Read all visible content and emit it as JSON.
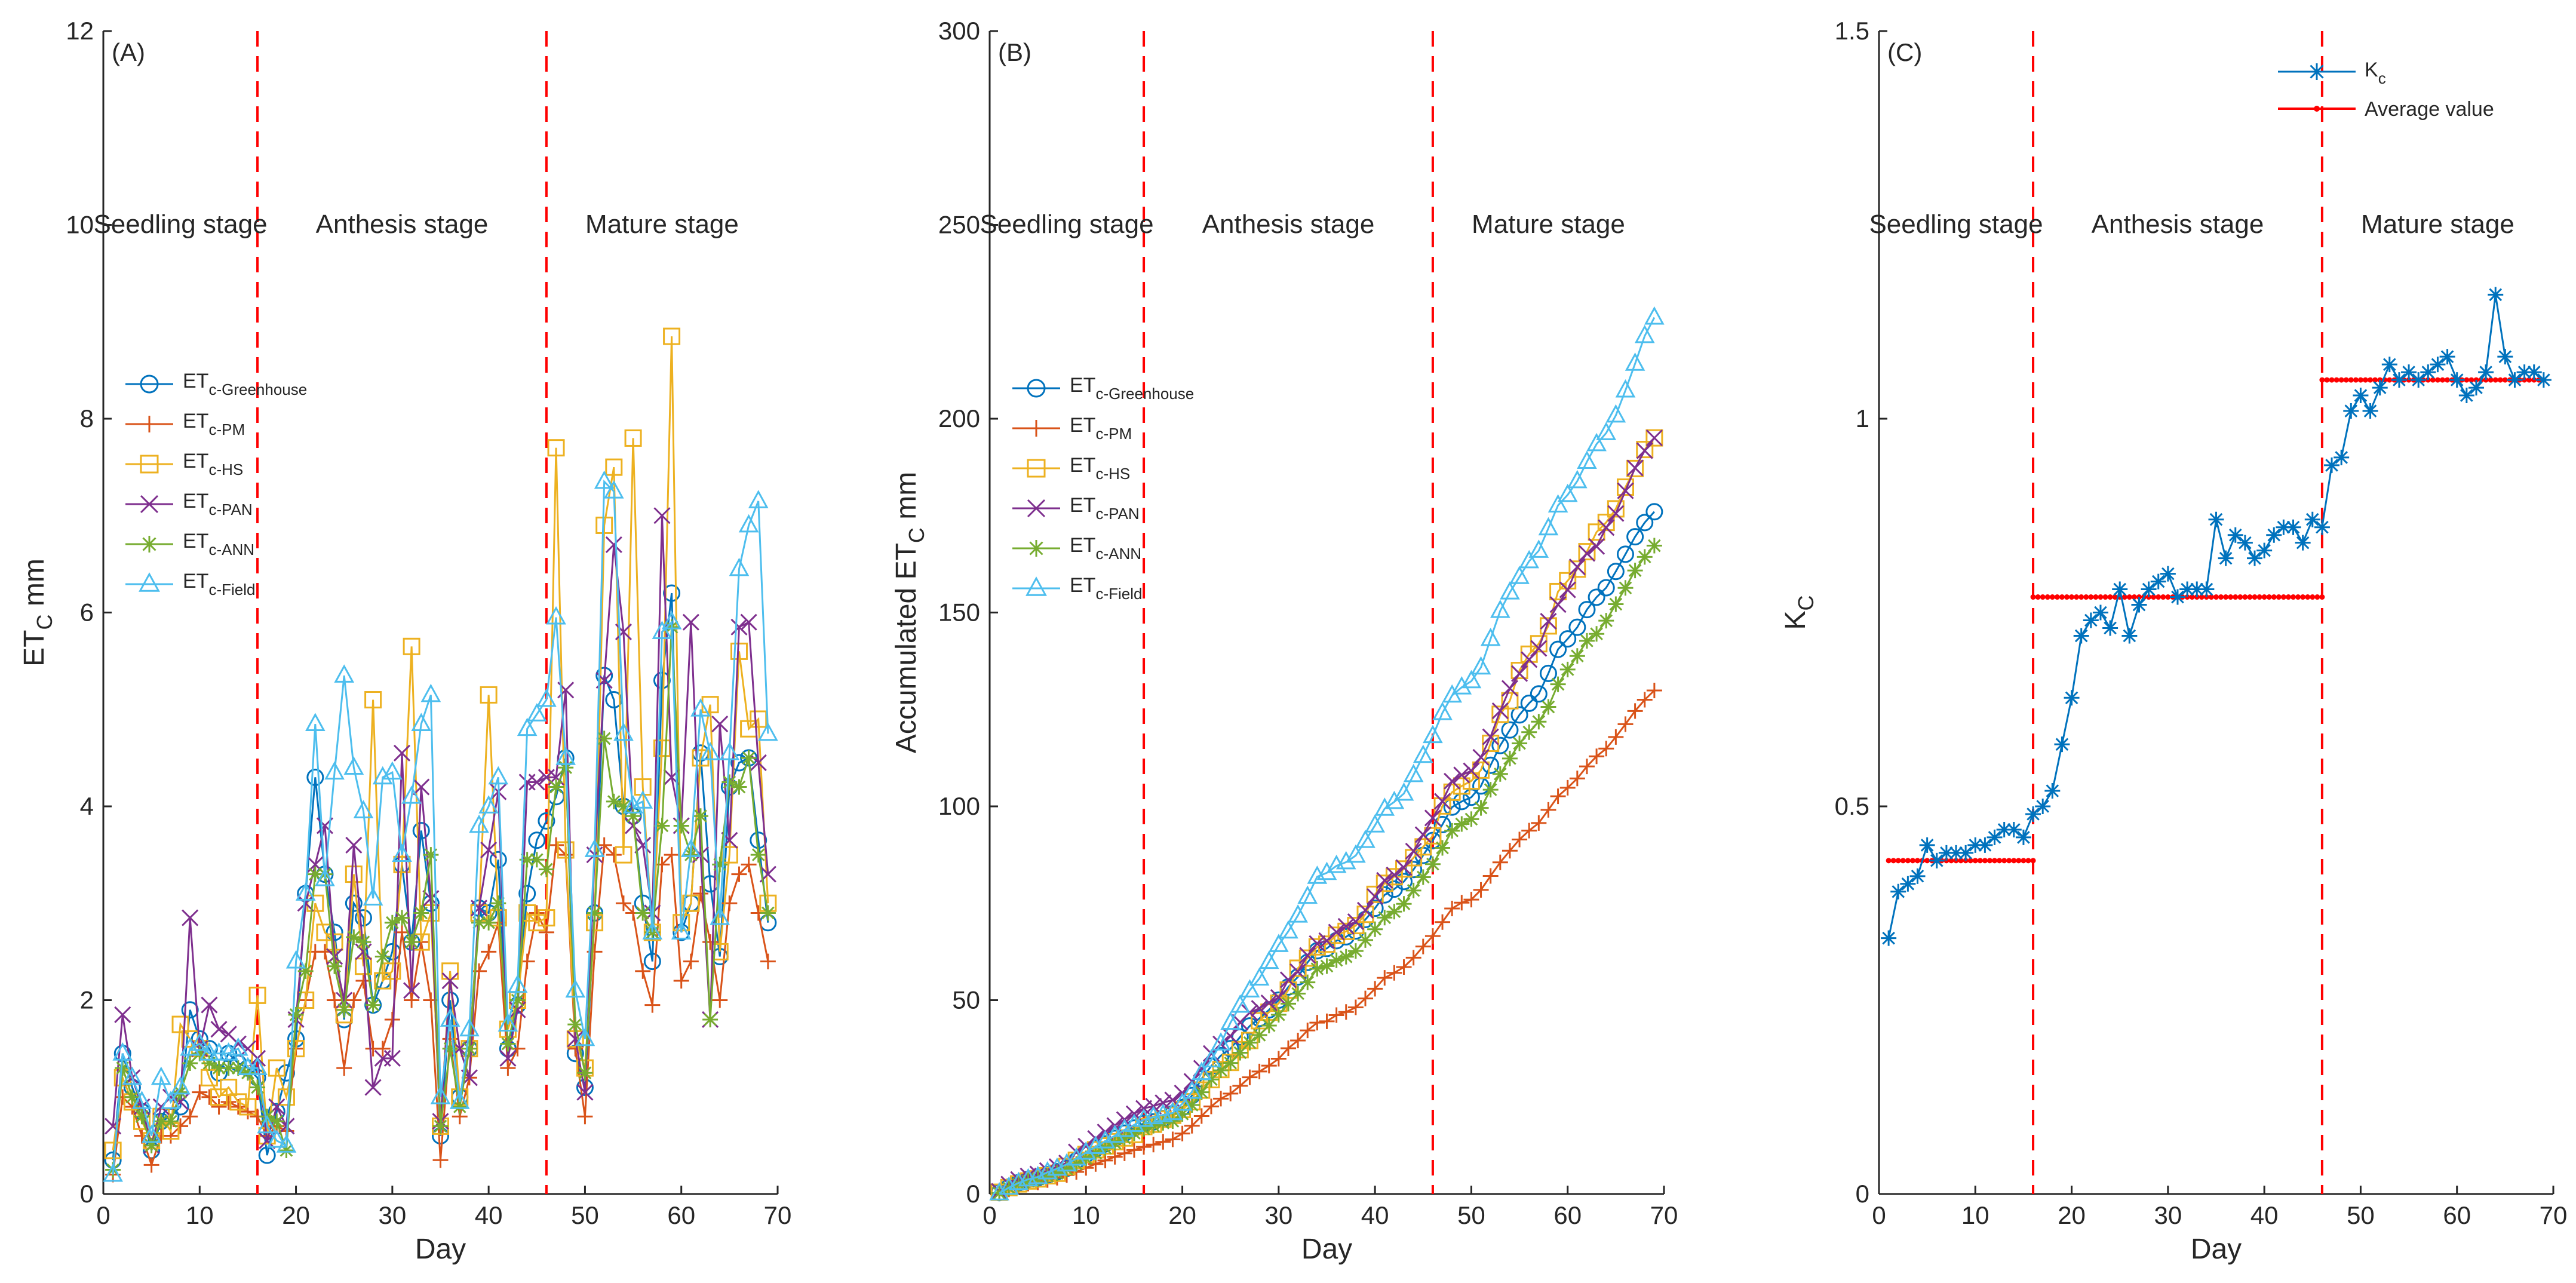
{
  "colors": {
    "greenhouse": "#0072BD",
    "pm": "#D95319",
    "hs": "#EDB120",
    "pan": "#7E2F8E",
    "ann": "#77AC30",
    "field": "#4DBEEE",
    "kc": "#0072BD",
    "average": "#FF0000",
    "stage_line": "#FF0000"
  },
  "chart_data": [
    {
      "id": "A",
      "type": "line",
      "panel_label": "(A)",
      "xlabel": "Day",
      "ylabel": "ET",
      "ylabel_sub": "C",
      "ylabel_unit": " mm",
      "xlim": [
        0,
        70
      ],
      "ylim": [
        0,
        12
      ],
      "xticks": [
        0,
        10,
        20,
        30,
        40,
        50,
        60,
        70
      ],
      "yticks": [
        0,
        2,
        4,
        6,
        8,
        10,
        12
      ],
      "stage_boundaries": [
        16,
        46
      ],
      "stages": [
        "Seedling stage",
        "Anthesis stage",
        "Mature stage"
      ],
      "x": [
        1,
        2,
        3,
        4,
        5,
        6,
        7,
        8,
        9,
        10,
        11,
        12,
        13,
        14,
        15,
        16,
        17,
        18,
        19,
        20,
        21,
        22,
        23,
        24,
        25,
        26,
        27,
        28,
        29,
        30,
        31,
        32,
        33,
        34,
        35,
        36,
        37,
        38,
        39,
        40,
        41,
        42,
        43,
        44,
        45,
        46,
        47,
        48,
        49,
        50,
        51,
        52,
        53,
        54,
        55,
        56,
        57,
        58,
        59,
        60,
        61,
        62,
        63,
        64,
        65,
        66,
        67,
        68,
        69
      ],
      "series": [
        {
          "key": "greenhouse",
          "name": "ET",
          "sub": "c-Greenhouse",
          "marker": "circle",
          "values": [
            0.35,
            1.45,
            1.1,
            0.85,
            0.45,
            0.75,
            0.8,
            0.9,
            1.9,
            1.6,
            1.5,
            1.25,
            1.45,
            1.35,
            1.3,
            1.2,
            0.4,
            0.85,
            1.25,
            1.6,
            3.1,
            4.3,
            3.3,
            2.7,
            1.8,
            3.0,
            2.85,
            1.95,
            2.2,
            2.5,
            3.4,
            2.6,
            3.75,
            3.0,
            0.6,
            2.0,
            1.0,
            1.5,
            2.95,
            2.9,
            3.45,
            1.5,
            1.95,
            3.1,
            3.65,
            3.85,
            4.1,
            4.5,
            1.45,
            1.1,
            2.9,
            5.35,
            5.1,
            4.0,
            3.9,
            3.0,
            2.4,
            5.3,
            6.2,
            2.7,
            3.0,
            4.55,
            3.2,
            2.45,
            4.2,
            4.45,
            4.5,
            3.65,
            2.8
          ]
        },
        {
          "key": "pm",
          "name": "ET",
          "sub": "c-PM",
          "marker": "plus",
          "values": [
            0.2,
            1.0,
            0.9,
            0.6,
            0.3,
            0.6,
            0.6,
            0.7,
            0.8,
            1.05,
            1.0,
            0.9,
            0.95,
            0.9,
            0.85,
            0.8,
            0.6,
            0.7,
            0.65,
            1.5,
            2.0,
            2.5,
            2.5,
            2.0,
            1.3,
            2.0,
            2.2,
            1.5,
            1.5,
            1.8,
            2.7,
            2.0,
            2.6,
            2.0,
            0.35,
            1.6,
            0.8,
            1.2,
            2.3,
            2.5,
            2.8,
            1.3,
            1.5,
            2.4,
            2.9,
            2.7,
            3.6,
            3.5,
            1.5,
            0.8,
            2.5,
            3.6,
            3.5,
            3.0,
            2.9,
            2.3,
            1.95,
            3.4,
            3.5,
            2.2,
            2.4,
            3.1,
            2.6,
            2.0,
            3.0,
            3.3,
            3.4,
            2.9,
            2.4
          ]
        },
        {
          "key": "hs",
          "name": "ET",
          "sub": "c-HS",
          "marker": "square",
          "values": [
            0.45,
            1.2,
            0.95,
            0.75,
            0.55,
            0.8,
            0.65,
            1.75,
            1.6,
            1.5,
            1.2,
            1.0,
            1.1,
            0.95,
            0.9,
            2.05,
            0.6,
            1.3,
            1.0,
            1.5,
            2.0,
            3.0,
            2.7,
            2.6,
            1.85,
            3.3,
            2.35,
            5.1,
            2.2,
            2.3,
            3.4,
            5.65,
            2.6,
            2.9,
            0.7,
            2.3,
            1.0,
            1.5,
            2.9,
            5.15,
            2.85,
            1.7,
            2.0,
            2.9,
            2.8,
            2.85,
            7.7,
            3.55,
            1.6,
            1.3,
            2.8,
            6.9,
            7.5,
            3.5,
            7.8,
            4.2,
            2.7,
            4.6,
            8.85,
            2.8,
            3.0,
            4.5,
            5.05,
            2.5,
            3.5,
            5.6,
            4.8,
            4.9,
            3.0
          ]
        },
        {
          "key": "pan",
          "name": "ET",
          "sub": "c-PAN",
          "marker": "x",
          "values": [
            0.7,
            1.85,
            1.2,
            0.9,
            0.5,
            0.9,
            1.0,
            0.95,
            2.85,
            1.5,
            1.95,
            1.7,
            1.65,
            1.55,
            1.5,
            1.4,
            0.55,
            0.9,
            0.7,
            1.8,
            3.0,
            3.4,
            3.8,
            2.45,
            2.0,
            3.6,
            2.5,
            1.1,
            1.4,
            1.4,
            4.55,
            2.1,
            4.2,
            3.05,
            0.75,
            2.2,
            1.5,
            1.2,
            2.95,
            3.55,
            4.15,
            1.4,
            1.9,
            4.25,
            4.25,
            4.3,
            4.3,
            5.2,
            1.6,
            1.05,
            3.5,
            5.3,
            6.7,
            5.8,
            3.8,
            3.6,
            2.9,
            7.0,
            4.3,
            3.8,
            5.9,
            3.5,
            1.8,
            4.85,
            3.65,
            5.85,
            5.9,
            4.45,
            3.3
          ]
        },
        {
          "key": "ann",
          "name": "ET",
          "sub": "c-ANN",
          "marker": "asterisk",
          "values": [
            0.25,
            1.3,
            1.0,
            0.8,
            0.5,
            0.75,
            0.75,
            1.05,
            1.35,
            1.45,
            1.35,
            1.3,
            1.3,
            1.3,
            1.25,
            1.1,
            0.8,
            0.75,
            0.45,
            1.85,
            2.3,
            3.3,
            3.3,
            2.35,
            1.9,
            2.65,
            2.6,
            1.95,
            2.45,
            2.8,
            2.85,
            2.6,
            2.9,
            3.5,
            0.7,
            1.5,
            0.9,
            1.5,
            2.8,
            2.8,
            3.0,
            1.55,
            2.0,
            3.45,
            3.45,
            3.35,
            4.2,
            4.4,
            1.75,
            1.25,
            2.9,
            4.7,
            4.05,
            4.0,
            3.9,
            2.9,
            2.7,
            3.8,
            5.85,
            3.8,
            3.5,
            3.9,
            1.8,
            3.4,
            4.25,
            4.2,
            4.5,
            3.5,
            2.9
          ]
        },
        {
          "key": "field",
          "name": "ET",
          "sub": "c-Field",
          "marker": "triangle",
          "values": [
            0.2,
            1.45,
            1.2,
            0.95,
            0.6,
            1.2,
            0.95,
            1.1,
            1.5,
            1.55,
            1.45,
            1.45,
            1.45,
            1.5,
            1.3,
            1.3,
            0.7,
            0.55,
            0.5,
            2.4,
            3.1,
            4.85,
            3.25,
            4.35,
            5.35,
            4.4,
            3.95,
            3.05,
            4.3,
            4.35,
            3.5,
            4.1,
            4.85,
            5.15,
            1.0,
            1.8,
            0.95,
            1.7,
            3.8,
            4.0,
            4.3,
            1.75,
            2.15,
            4.8,
            4.95,
            5.1,
            5.95,
            4.5,
            2.1,
            1.6,
            3.55,
            7.35,
            7.25,
            4.75,
            4.0,
            4.05,
            2.7,
            5.8,
            5.9,
            2.7,
            3.55,
            5.0,
            4.55,
            2.85,
            4.55,
            6.45,
            6.9,
            7.15,
            4.75
          ]
        }
      ]
    },
    {
      "id": "B",
      "type": "line",
      "panel_label": "(B)",
      "xlabel": "Day",
      "ylabel": "Accumulated ET",
      "ylabel_sub": "C",
      "ylabel_unit": " mm",
      "xlim": [
        0,
        70
      ],
      "ylim": [
        0,
        300
      ],
      "xticks": [
        0,
        10,
        20,
        30,
        40,
        50,
        60,
        70
      ],
      "yticks": [
        0,
        50,
        100,
        150,
        200,
        250,
        300
      ],
      "stage_boundaries": [
        16,
        46
      ],
      "stages": [
        "Seedling stage",
        "Anthesis stage",
        "Mature stage"
      ],
      "cumulative_of": "A"
    },
    {
      "id": "C",
      "type": "line",
      "panel_label": "(C)",
      "xlabel": "Day",
      "ylabel": "K",
      "ylabel_sub": "C",
      "ylabel_unit": "",
      "xlim": [
        0,
        70
      ],
      "ylim": [
        0,
        1.5
      ],
      "xticks": [
        0,
        10,
        20,
        30,
        40,
        50,
        60,
        70
      ],
      "yticks": [
        0,
        0.5,
        1,
        1.5
      ],
      "ytick_labels": [
        "0",
        "0.5",
        "1",
        "1.5"
      ],
      "stage_boundaries": [
        16,
        46
      ],
      "stages": [
        "Seedling stage",
        "Anthesis stage",
        "Mature stage"
      ],
      "x": [
        1,
        2,
        3,
        4,
        5,
        6,
        7,
        8,
        9,
        10,
        11,
        12,
        13,
        14,
        15,
        16,
        17,
        18,
        19,
        20,
        21,
        22,
        23,
        24,
        25,
        26,
        27,
        28,
        29,
        30,
        31,
        32,
        33,
        34,
        35,
        36,
        37,
        38,
        39,
        40,
        41,
        42,
        43,
        44,
        45,
        46,
        47,
        48,
        49,
        50,
        51,
        52,
        53,
        54,
        55,
        56,
        57,
        58,
        59,
        60,
        61,
        62,
        63,
        64,
        65,
        66,
        67,
        68,
        69
      ],
      "kc": {
        "name": "K",
        "sub": "c",
        "values": [
          0.33,
          0.39,
          0.4,
          0.41,
          0.45,
          0.43,
          0.44,
          0.44,
          0.44,
          0.45,
          0.45,
          0.46,
          0.47,
          0.47,
          0.46,
          0.49,
          0.5,
          0.52,
          0.58,
          0.64,
          0.72,
          0.74,
          0.75,
          0.73,
          0.78,
          0.72,
          0.76,
          0.78,
          0.79,
          0.8,
          0.77,
          0.78,
          0.78,
          0.78,
          0.87,
          0.82,
          0.85,
          0.84,
          0.82,
          0.83,
          0.85,
          0.86,
          0.86,
          0.84,
          0.87,
          0.86,
          0.94,
          0.95,
          1.01,
          1.03,
          1.01,
          1.04,
          1.07,
          1.05,
          1.06,
          1.05,
          1.06,
          1.07,
          1.08,
          1.05,
          1.03,
          1.04,
          1.06,
          1.16,
          1.08,
          1.05,
          1.06,
          1.06,
          1.05
        ]
      },
      "average": {
        "name": "Average value",
        "segments": [
          {
            "x0": 1,
            "x1": 16,
            "y": 0.43
          },
          {
            "x0": 16,
            "x1": 46,
            "y": 0.77
          },
          {
            "x0": 46,
            "x1": 69,
            "y": 1.05
          }
        ]
      }
    }
  ]
}
